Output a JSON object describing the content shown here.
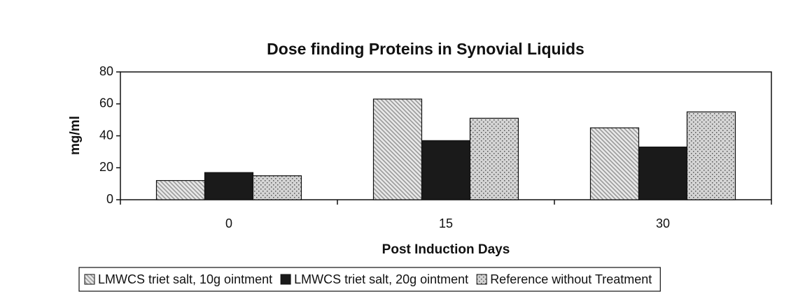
{
  "chart_data": {
    "type": "bar",
    "title": "Dose finding Proteins in Synovial Liquids",
    "x_label": "Post Induction Days",
    "y_label": "mg/ml",
    "categories": [
      "0",
      "15",
      "30"
    ],
    "series": [
      {
        "name": "LMWCS triet salt, 10g ointment",
        "color": "#9a9a9a",
        "values": [
          12,
          63,
          45
        ]
      },
      {
        "name": "LMWCS triet salt, 20g ointment",
        "color": "#1a1a1a",
        "values": [
          17,
          37,
          33
        ]
      },
      {
        "name": "Reference without Treatment",
        "color": "#d4d4d4",
        "values": [
          15,
          51,
          55
        ]
      }
    ],
    "ylim": [
      0,
      80
    ],
    "yticks": [
      0,
      20,
      40,
      60,
      80
    ],
    "grid": false,
    "legend": "bottom"
  }
}
